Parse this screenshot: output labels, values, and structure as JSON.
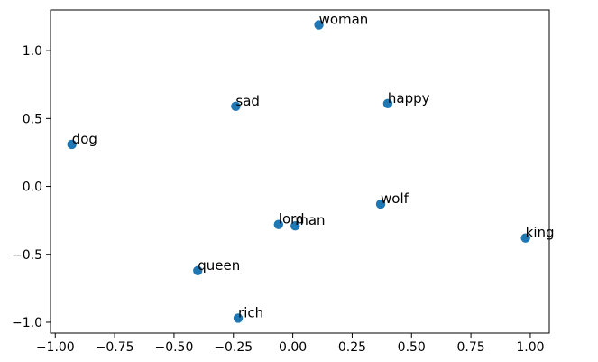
{
  "chart_data": {
    "type": "scatter",
    "title": "",
    "xlabel": "",
    "ylabel": "",
    "xlim": [
      -1.02,
      1.08
    ],
    "ylim": [
      -1.08,
      1.3
    ],
    "x_ticks": [
      -1.0,
      -0.75,
      -0.5,
      -0.25,
      0.0,
      0.25,
      0.5,
      0.75,
      1.0
    ],
    "x_tick_labels": [
      "−1.00",
      "−0.75",
      "−0.50",
      "−0.25",
      "0.00",
      "0.25",
      "0.50",
      "0.75",
      "1.00"
    ],
    "y_ticks": [
      -1.0,
      -0.5,
      0.0,
      0.5,
      1.0
    ],
    "y_tick_labels": [
      "−1.0",
      "−0.5",
      "0.0",
      "0.5",
      "1.0"
    ],
    "grid": false,
    "marker_color": "#1f77b4",
    "points": [
      {
        "label": "woman",
        "x": 0.11,
        "y": 1.19
      },
      {
        "label": "happy",
        "x": 0.4,
        "y": 0.61
      },
      {
        "label": "sad",
        "x": -0.24,
        "y": 0.59
      },
      {
        "label": "dog",
        "x": -0.93,
        "y": 0.31
      },
      {
        "label": "wolf",
        "x": 0.37,
        "y": -0.13
      },
      {
        "label": "lord",
        "x": -0.06,
        "y": -0.28
      },
      {
        "label": "man",
        "x": 0.01,
        "y": -0.29
      },
      {
        "label": "king",
        "x": 0.98,
        "y": -0.38
      },
      {
        "label": "queen",
        "x": -0.4,
        "y": -0.62
      },
      {
        "label": "rich",
        "x": -0.23,
        "y": -0.97
      }
    ]
  }
}
